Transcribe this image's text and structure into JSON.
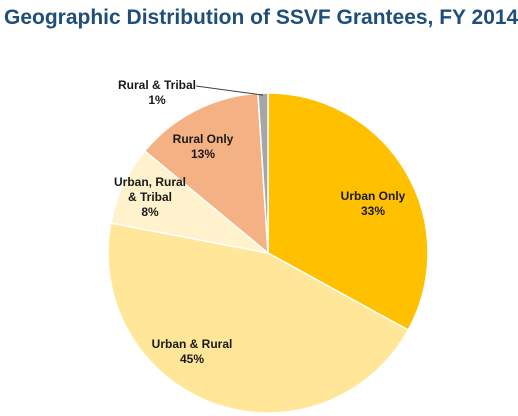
{
  "chart_data": {
    "type": "pie",
    "title": "Geographic Distribution of SSVF Grantees, FY 2014",
    "slices": [
      {
        "label": "Urban Only",
        "value": 33,
        "value_label": "33%",
        "color": "#ffc000"
      },
      {
        "label": "Urban & Rural",
        "value": 45,
        "value_label": "45%",
        "color": "#ffe699"
      },
      {
        "label": "Urban, Rural & Tribal",
        "value": 8,
        "value_label": "8%",
        "color": "#fff2cc"
      },
      {
        "label": "Rural Only",
        "value": 13,
        "value_label": "13%",
        "color": "#f4b183"
      },
      {
        "label": "Rural & Tribal",
        "value": 1,
        "value_label": "1%",
        "color": "#a6a6a6"
      }
    ]
  }
}
